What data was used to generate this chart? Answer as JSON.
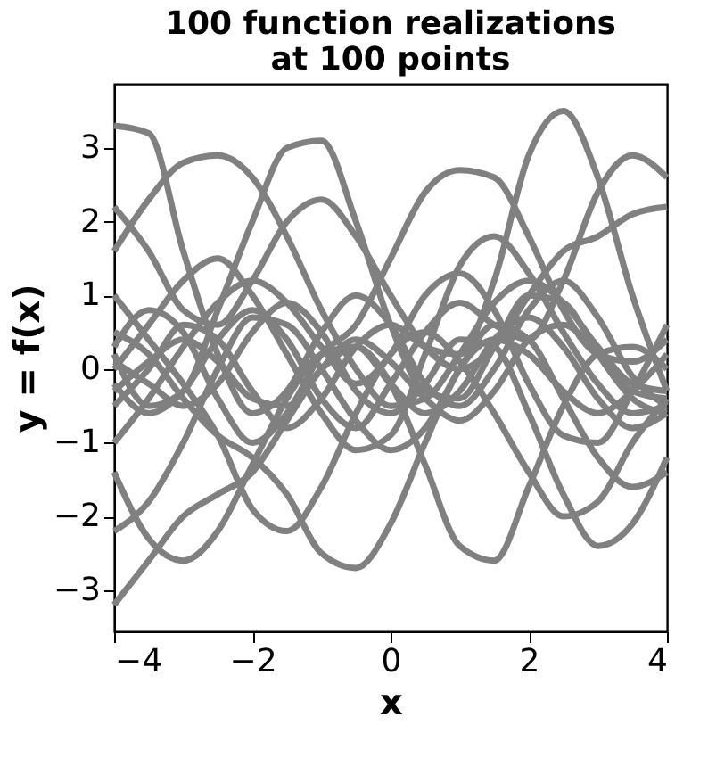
{
  "chart_data": {
    "type": "line",
    "title": "100 function realizations\nat 100 points",
    "xlabel": "x",
    "ylabel": "y = f(x)",
    "xlim": [
      -4,
      4
    ],
    "xticks": [
      -4,
      -2,
      0,
      2,
      4
    ],
    "ylim": [
      -3.56,
      3.87
    ],
    "yticks": [
      -3,
      -2,
      -1,
      0,
      1,
      2,
      3
    ],
    "grid": false,
    "legend": false,
    "x": [
      -4,
      -3.5,
      -3,
      -2.5,
      -2,
      -1.5,
      -1,
      -0.5,
      0,
      0.5,
      1,
      1.5,
      2,
      2.5,
      3,
      3.5,
      4
    ],
    "series": [
      {
        "color": "#808080",
        "values": [
          3.3,
          3.2,
          1.6,
          0.2,
          -0.6,
          -0.3,
          0.5,
          1.0,
          0.6,
          -0.2,
          -0.5,
          0,
          0.8,
          1.2,
          0.7,
          -0.1,
          -0.5
        ]
      },
      {
        "color": "#808080",
        "values": [
          0.2,
          -0.5,
          -0.3,
          0.8,
          2.0,
          3.0,
          3.1,
          2.0,
          0.6,
          -0.3,
          -0.4,
          0.3,
          1.0,
          0.9,
          0.2,
          -0.4,
          -0.6
        ]
      },
      {
        "color": "#808080",
        "values": [
          1.6,
          2.3,
          2.8,
          2.9,
          2.6,
          1.8,
          0.8,
          0,
          -0.5,
          -0.4,
          0.2,
          0.9,
          1.2,
          0.9,
          0.3,
          -0.2,
          -0.3
        ]
      },
      {
        "color": "#808080",
        "values": [
          -0.5,
          0,
          0.6,
          0.4,
          -0.3,
          -0.8,
          -0.4,
          0.3,
          0.6,
          0.3,
          0.2,
          1.2,
          2.9,
          3.5,
          2.6,
          1.0,
          -0.3
        ]
      },
      {
        "color": "#808080",
        "values": [
          0.3,
          0.8,
          0.5,
          -0.4,
          -1.0,
          -0.6,
          0.2,
          0.6,
          1.5,
          2.4,
          2.7,
          2.6,
          1.8,
          0.8,
          0.2,
          0.1,
          0.4
        ]
      },
      {
        "color": "#808080",
        "values": [
          -0.2,
          -0.6,
          -0.3,
          0.4,
          0.8,
          0.4,
          -0.4,
          -0.8,
          -0.2,
          0.5,
          0.9,
          0.6,
          0.4,
          1.2,
          2.4,
          2.9,
          2.6
        ]
      },
      {
        "color": "#808080",
        "values": [
          -3.2,
          -2.6,
          -2.0,
          -1.7,
          -1.4,
          -0.7,
          0,
          0.4,
          0.1,
          -0.4,
          -0.7,
          -0.3,
          0.4,
          0.6,
          0.2,
          -0.3,
          -0.4
        ]
      },
      {
        "color": "#808080",
        "values": [
          0.5,
          0.2,
          -0.4,
          -0.9,
          -1.2,
          -1.7,
          -2.5,
          -2.7,
          -2.1,
          -1.0,
          0,
          0.4,
          0.2,
          -0.3,
          -0.6,
          -0.3,
          0.2
        ]
      },
      {
        "color": "#808080",
        "values": [
          -0.3,
          0.1,
          0.4,
          0.1,
          -0.4,
          -0.5,
          0,
          0.3,
          -0.2,
          -1.3,
          -2.4,
          -2.6,
          -1.6,
          -0.5,
          0.2,
          0.3,
          0
        ]
      },
      {
        "color": "#808080",
        "values": [
          0.1,
          -0.2,
          -0.5,
          -0.2,
          0.5,
          0.9,
          0.5,
          -0.3,
          -0.6,
          -0.2,
          0.4,
          0.3,
          -0.6,
          -1.7,
          -2.4,
          -2.1,
          -1.2
        ]
      },
      {
        "color": "#808080",
        "values": [
          -1.4,
          -2.3,
          -2.6,
          -2.2,
          -1.3,
          -0.4,
          0.2,
          0.3,
          -0.2,
          -0.6,
          -0.3,
          0.4,
          0.7,
          0.3,
          -0.4,
          -0.8,
          -0.6
        ]
      },
      {
        "color": "#808080",
        "values": [
          2.2,
          1.6,
          0.8,
          0.6,
          1.2,
          2.0,
          2.3,
          1.8,
          1.0,
          0.3,
          0,
          0.3,
          1.0,
          1.6,
          1.8,
          2.1,
          2.2
        ]
      },
      {
        "color": "#808080",
        "values": [
          -2.2,
          -1.8,
          -1.0,
          0,
          0.7,
          0.6,
          0,
          -0.7,
          -1.1,
          -0.8,
          0,
          0.6,
          0.4,
          -0.4,
          -1.2,
          -1.6,
          -1.4
        ]
      },
      {
        "color": "#808080",
        "values": [
          1.0,
          0.4,
          -0.2,
          -0.9,
          -1.9,
          -2.2,
          -1.6,
          -0.6,
          0.2,
          0.5,
          0.1,
          -0.6,
          -1.4,
          -2.0,
          -1.8,
          -1.0,
          -0.4
        ]
      },
      {
        "color": "#808080",
        "values": [
          0.0,
          0.6,
          1.2,
          1.5,
          1.0,
          0.2,
          -0.6,
          -1.1,
          -0.9,
          0.2,
          1.4,
          1.8,
          1.3,
          0.5,
          -0.2,
          -0.6,
          -0.5
        ]
      },
      {
        "color": "#808080",
        "values": [
          -1.0,
          -0.4,
          0.3,
          0.9,
          1.2,
          0.9,
          0.3,
          -0.2,
          0.2,
          1.0,
          1.3,
          0.8,
          -0.2,
          -0.9,
          -1.0,
          -0.3,
          0.6
        ]
      }
    ]
  }
}
